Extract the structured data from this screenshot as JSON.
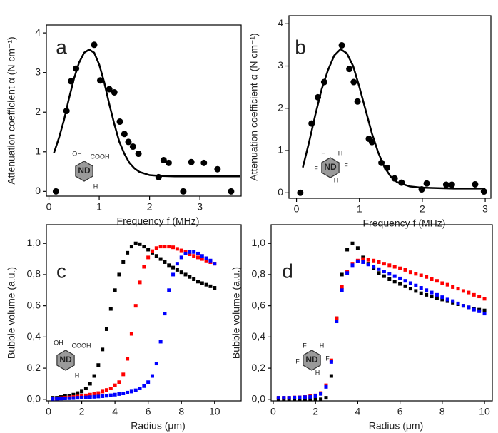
{
  "chart_data": [
    {
      "type": "scatter-fit",
      "panel": "a",
      "molecule": [
        "OH",
        "COOH",
        "ND",
        "H"
      ],
      "x_label": "Frequency f (MHz)",
      "y_label": "Attenuation coefficient α (N cm⁻¹)",
      "xlim": [
        -0.05,
        3.82
      ],
      "ylim": [
        -0.12,
        4.2
      ],
      "xticks": [
        0,
        1,
        2,
        3
      ],
      "yticks": [
        0,
        1,
        2,
        3,
        4
      ],
      "series": [
        {
          "style": "markers",
          "color": "#000000",
          "x": [
            0.14,
            0.35,
            0.44,
            0.54,
            0.9,
            1.02,
            1.2,
            1.3,
            1.41,
            1.5,
            1.58,
            1.67,
            1.78,
            2.18,
            2.28,
            2.38,
            2.67,
            2.83,
            3.08,
            3.35,
            3.62
          ],
          "values": [
            0.0,
            2.03,
            2.78,
            3.1,
            3.7,
            2.8,
            2.58,
            2.5,
            1.76,
            1.45,
            1.25,
            1.13,
            0.95,
            0.36,
            0.79,
            0.72,
            0.0,
            0.74,
            0.72,
            0.56,
            0.0
          ]
        },
        {
          "style": "line",
          "color": "#000000",
          "x": [
            0.1,
            0.2,
            0.3,
            0.4,
            0.5,
            0.6,
            0.7,
            0.8,
            0.9,
            1.0,
            1.1,
            1.2,
            1.3,
            1.4,
            1.5,
            1.6,
            1.7,
            1.8,
            2.0,
            2.2,
            2.5,
            3.0,
            3.5,
            3.8
          ],
          "values": [
            0.97,
            1.35,
            1.8,
            2.35,
            2.85,
            3.25,
            3.5,
            3.58,
            3.5,
            3.2,
            2.75,
            2.2,
            1.7,
            1.25,
            0.95,
            0.72,
            0.58,
            0.49,
            0.41,
            0.39,
            0.38,
            0.38,
            0.38,
            0.38
          ]
        }
      ]
    },
    {
      "type": "scatter-fit",
      "panel": "b",
      "molecule": [
        "F",
        "H",
        "F",
        "ND",
        "F",
        "H"
      ],
      "x_label": "Frequency f (MHz)",
      "y_label": "Attenuation coefficient α (N cm⁻¹)",
      "xlim": [
        -0.12,
        3.09
      ],
      "ylim": [
        -0.13,
        4.19
      ],
      "xticks": [
        0,
        1,
        2,
        3
      ],
      "yticks": [
        0,
        1,
        2,
        3,
        4
      ],
      "series": [
        {
          "style": "markers",
          "color": "#000000",
          "x": [
            0.06,
            0.24,
            0.34,
            0.44,
            0.72,
            0.84,
            0.91,
            0.97,
            1.15,
            1.2,
            1.35,
            1.44,
            1.56,
            1.67,
            1.99,
            2.07,
            2.38,
            2.47,
            2.84,
            2.98
          ],
          "values": [
            0.0,
            1.64,
            2.26,
            2.62,
            3.49,
            2.93,
            2.62,
            2.16,
            1.28,
            1.2,
            0.71,
            0.59,
            0.34,
            0.24,
            0.08,
            0.22,
            0.19,
            0.19,
            0.2,
            0.03
          ]
        },
        {
          "style": "line",
          "color": "#000000",
          "x": [
            0.1,
            0.2,
            0.3,
            0.4,
            0.5,
            0.6,
            0.7,
            0.8,
            0.9,
            1.0,
            1.1,
            1.2,
            1.3,
            1.4,
            1.5,
            1.6,
            1.8,
            2.0,
            2.5,
            3.0
          ],
          "values": [
            0.6,
            1.2,
            1.85,
            2.45,
            2.9,
            3.25,
            3.4,
            3.3,
            3.0,
            2.5,
            1.95,
            1.4,
            0.95,
            0.6,
            0.38,
            0.25,
            0.15,
            0.12,
            0.1,
            0.1
          ]
        }
      ]
    },
    {
      "type": "square-scatter",
      "panel": "c",
      "molecule": [
        "OH",
        "COOH",
        "ND",
        "H"
      ],
      "x_label": "Radius (μm)",
      "y_label": "Bubble volume (a.u.)",
      "xlim": [
        -0.13,
        11.6
      ],
      "ylim": [
        -0.01,
        1.12
      ],
      "xticks": [
        0,
        2,
        4,
        6,
        8,
        10
      ],
      "yticks": [
        {
          "value": 0,
          "label": "0,0"
        },
        {
          "value": 0.2,
          "label": "0,2"
        },
        {
          "value": 0.4,
          "label": "0,4"
        },
        {
          "value": 0.6,
          "label": "0,6"
        },
        {
          "value": 0.8,
          "label": "0,8"
        },
        {
          "value": 1,
          "label": "1,0"
        }
      ],
      "x": [
        0.25,
        0.5,
        0.75,
        1,
        1.25,
        1.5,
        1.75,
        2,
        2.25,
        2.5,
        2.75,
        3,
        3.25,
        3.5,
        3.75,
        4,
        4.25,
        4.5,
        4.75,
        5,
        5.25,
        5.5,
        5.75,
        6,
        6.25,
        6.5,
        6.75,
        7,
        7.25,
        7.5,
        7.75,
        8,
        8.25,
        8.5,
        8.75,
        9,
        9.25,
        9.5,
        9.75,
        10
      ],
      "series": [
        {
          "color": "#000000",
          "values": [
            0.01,
            0.01,
            0.015,
            0.02,
            0.02,
            0.03,
            0.04,
            0.05,
            0.07,
            0.1,
            0.15,
            0.22,
            0.32,
            0.45,
            0.58,
            0.7,
            0.8,
            0.88,
            0.94,
            0.98,
            1.0,
            0.995,
            0.98,
            0.96,
            0.94,
            0.92,
            0.9,
            0.88,
            0.86,
            0.845,
            0.83,
            0.815,
            0.8,
            0.785,
            0.77,
            0.755,
            0.745,
            0.735,
            0.725,
            0.715
          ]
        },
        {
          "color": "#ff0000",
          "values": [
            0.005,
            0.005,
            0.008,
            0.01,
            0.012,
            0.015,
            0.018,
            0.02,
            0.025,
            0.03,
            0.035,
            0.04,
            0.05,
            0.06,
            0.07,
            0.09,
            0.11,
            0.16,
            0.26,
            0.42,
            0.6,
            0.75,
            0.85,
            0.91,
            0.95,
            0.97,
            0.98,
            0.98,
            0.98,
            0.975,
            0.965,
            0.955,
            0.945,
            0.93,
            0.92,
            0.91,
            0.9,
            0.89,
            0.88,
            0.87
          ]
        },
        {
          "color": "#0000ff",
          "values": [
            0.003,
            0.004,
            0.005,
            0.006,
            0.007,
            0.008,
            0.01,
            0.011,
            0.012,
            0.014,
            0.016,
            0.018,
            0.02,
            0.023,
            0.026,
            0.03,
            0.034,
            0.038,
            0.043,
            0.05,
            0.058,
            0.07,
            0.085,
            0.11,
            0.15,
            0.23,
            0.37,
            0.55,
            0.7,
            0.8,
            0.87,
            0.91,
            0.935,
            0.945,
            0.945,
            0.935,
            0.92,
            0.905,
            0.89,
            0.87
          ]
        }
      ]
    },
    {
      "type": "square-scatter",
      "panel": "d",
      "molecule": [
        "F",
        "H",
        "F",
        "ND",
        "F",
        "H"
      ],
      "x_label": "Radius (μm)",
      "y_label": "Bubble volume (a.u.)",
      "xlim": [
        -0.1,
        10.37
      ],
      "ylim": [
        -0.01,
        1.12
      ],
      "xticks": [
        0,
        2,
        4,
        6,
        8,
        10
      ],
      "yticks": [
        {
          "value": 0,
          "label": "0,0"
        },
        {
          "value": 0.2,
          "label": "0,2"
        },
        {
          "value": 0.4,
          "label": "0,4"
        },
        {
          "value": 0.6,
          "label": "0,6"
        },
        {
          "value": 0.8,
          "label": "0,8"
        },
        {
          "value": 1,
          "label": "1,0"
        }
      ],
      "x": [
        0.25,
        0.5,
        0.75,
        1,
        1.25,
        1.5,
        1.75,
        2,
        2.25,
        2.5,
        2.75,
        3,
        3.25,
        3.5,
        3.75,
        4,
        4.25,
        4.5,
        4.75,
        5,
        5.25,
        5.5,
        5.75,
        6,
        6.25,
        6.5,
        6.75,
        7,
        7.25,
        7.5,
        7.75,
        8,
        8.25,
        8.5,
        8.75,
        9,
        9.25,
        9.5,
        9.75,
        10
      ],
      "series": [
        {
          "color": "#000000",
          "values": [
            0,
            0,
            0,
            0,
            0,
            0,
            0,
            0,
            0,
            0.01,
            0.15,
            0.52,
            0.8,
            0.96,
            1.0,
            0.97,
            0.91,
            0.87,
            0.84,
            0.81,
            0.79,
            0.77,
            0.755,
            0.74,
            0.725,
            0.71,
            0.695,
            0.68,
            0.67,
            0.66,
            0.65,
            0.64,
            0.63,
            0.62,
            0.61,
            0.6,
            0.59,
            0.58,
            0.575,
            0.57
          ]
        },
        {
          "color": "#ff0000",
          "values": [
            0.01,
            0.01,
            0.01,
            0.012,
            0.013,
            0.015,
            0.02,
            0.025,
            0.04,
            0.09,
            0.25,
            0.52,
            0.72,
            0.82,
            0.87,
            0.89,
            0.9,
            0.895,
            0.89,
            0.88,
            0.87,
            0.86,
            0.85,
            0.84,
            0.83,
            0.815,
            0.805,
            0.795,
            0.785,
            0.77,
            0.76,
            0.745,
            0.735,
            0.72,
            0.71,
            0.695,
            0.685,
            0.67,
            0.66,
            0.645
          ]
        },
        {
          "color": "#0000ff",
          "values": [
            0.01,
            0.01,
            0.01,
            0.011,
            0.012,
            0.014,
            0.016,
            0.02,
            0.035,
            0.08,
            0.24,
            0.5,
            0.7,
            0.81,
            0.86,
            0.885,
            0.88,
            0.865,
            0.85,
            0.835,
            0.82,
            0.805,
            0.79,
            0.775,
            0.76,
            0.745,
            0.73,
            0.715,
            0.7,
            0.685,
            0.67,
            0.655,
            0.64,
            0.63,
            0.615,
            0.6,
            0.59,
            0.575,
            0.565,
            0.55
          ]
        }
      ]
    }
  ]
}
